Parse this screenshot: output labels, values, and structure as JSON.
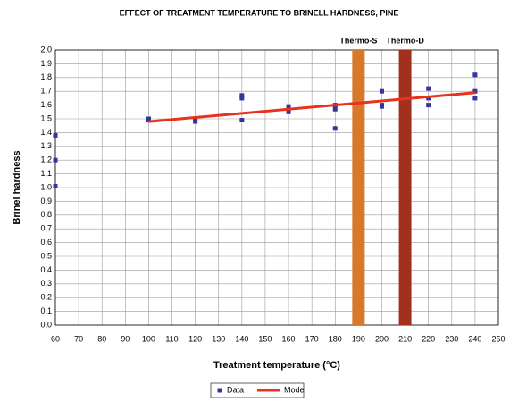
{
  "chart_data": {
    "type": "scatter",
    "title": "EFFECT OF TREATMENT TEMPERATURE TO BRINELL HARDNESS, PINE",
    "xlabel": "Treatment temperature (°C)",
    "ylabel": "Brinel hardness",
    "xlim": [
      60,
      250
    ],
    "ylim": [
      0,
      2
    ],
    "xticks": [
      60,
      70,
      80,
      90,
      100,
      110,
      120,
      130,
      140,
      150,
      160,
      170,
      180,
      190,
      200,
      210,
      220,
      230,
      240,
      250
    ],
    "yticks": [
      {
        "value": 0,
        "label": "0,0"
      },
      {
        "value": 0.1,
        "label": "0,1"
      },
      {
        "value": 0.2,
        "label": "0,2"
      },
      {
        "value": 0.3,
        "label": "0,3"
      },
      {
        "value": 0.4,
        "label": "0,4"
      },
      {
        "value": 0.5,
        "label": "0,5"
      },
      {
        "value": 0.6,
        "label": "0,6"
      },
      {
        "value": 0.7,
        "label": "0,7"
      },
      {
        "value": 0.8,
        "label": "0,8"
      },
      {
        "value": 0.9,
        "label": "0,9"
      },
      {
        "value": 1,
        "label": "1,0"
      },
      {
        "value": 1.1,
        "label": "1,1"
      },
      {
        "value": 1.2,
        "label": "1,2"
      },
      {
        "value": 1.3,
        "label": "1,3"
      },
      {
        "value": 1.4,
        "label": "1,4"
      },
      {
        "value": 1.5,
        "label": "1,5"
      },
      {
        "value": 1.6,
        "label": "1,6"
      },
      {
        "value": 1.7,
        "label": "1,7"
      },
      {
        "value": 1.8,
        "label": "1,8"
      },
      {
        "value": 1.9,
        "label": "1,9"
      },
      {
        "value": 2,
        "label": "2,0"
      }
    ],
    "grid": true,
    "legend": "bottom",
    "bands": [
      {
        "label": "Thermo-S",
        "x": 190,
        "color": "#d8782a"
      },
      {
        "label": "Thermo-D",
        "x": 210,
        "color": "#a3301e"
      }
    ],
    "series": [
      {
        "name": "Data",
        "type": "scatter",
        "color": "#34359a",
        "x": [
          60,
          60,
          60,
          100,
          100,
          120,
          120,
          140,
          140,
          140,
          160,
          160,
          160,
          180,
          180,
          180,
          200,
          200,
          200,
          220,
          220,
          220,
          240,
          240,
          240
        ],
        "values": [
          1.38,
          1.2,
          1.01,
          1.5,
          1.49,
          1.5,
          1.48,
          1.67,
          1.65,
          1.49,
          1.59,
          1.57,
          1.55,
          1.6,
          1.57,
          1.43,
          1.7,
          1.6,
          1.59,
          1.72,
          1.65,
          1.6,
          1.82,
          1.7,
          1.65
        ]
      },
      {
        "name": "Model",
        "type": "line",
        "color": "#e8321e",
        "x": [
          100,
          240
        ],
        "values": [
          1.48,
          1.69
        ]
      }
    ]
  }
}
